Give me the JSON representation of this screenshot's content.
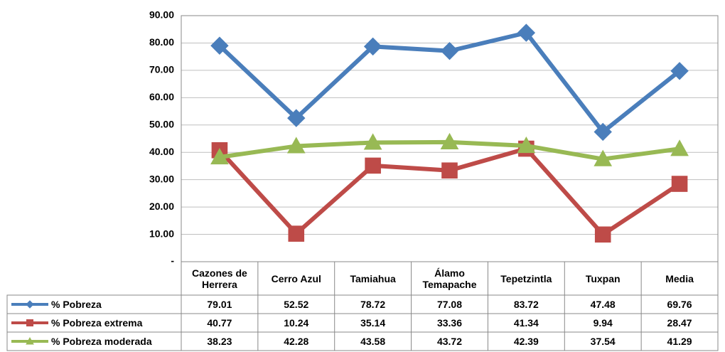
{
  "chart_data": {
    "type": "line",
    "categories": [
      "Cazones de Herrera",
      "Cerro Azul",
      "Tamiahua",
      "Álamo Temapache",
      "Tepetzintla",
      "Tuxpan",
      "Media"
    ],
    "series": [
      {
        "name": "% Pobreza",
        "color": "#4a7ebb",
        "marker": "diamond",
        "values": [
          79.01,
          52.52,
          78.72,
          77.08,
          83.72,
          47.48,
          69.76
        ]
      },
      {
        "name": "% Pobreza extrema",
        "color": "#be4b48",
        "marker": "square",
        "values": [
          40.77,
          10.24,
          35.14,
          33.36,
          41.34,
          9.94,
          28.47
        ]
      },
      {
        "name": "% Pobreza moderada",
        "color": "#98b954",
        "marker": "triangle",
        "values": [
          38.23,
          42.28,
          43.58,
          43.72,
          42.39,
          37.54,
          41.29
        ]
      }
    ],
    "ylim": [
      0,
      90
    ],
    "yticks": [
      {
        "value": 0,
        "label": "-"
      },
      {
        "value": 10,
        "label": "10.00"
      },
      {
        "value": 20,
        "label": "20.00"
      },
      {
        "value": 30,
        "label": "30.00"
      },
      {
        "value": 40,
        "label": "40.00"
      },
      {
        "value": 50,
        "label": "50.00"
      },
      {
        "value": 60,
        "label": "60.00"
      },
      {
        "value": 70,
        "label": "70.00"
      },
      {
        "value": 80,
        "label": "80.00"
      },
      {
        "value": 90,
        "label": "90.00"
      }
    ],
    "grid": true
  }
}
